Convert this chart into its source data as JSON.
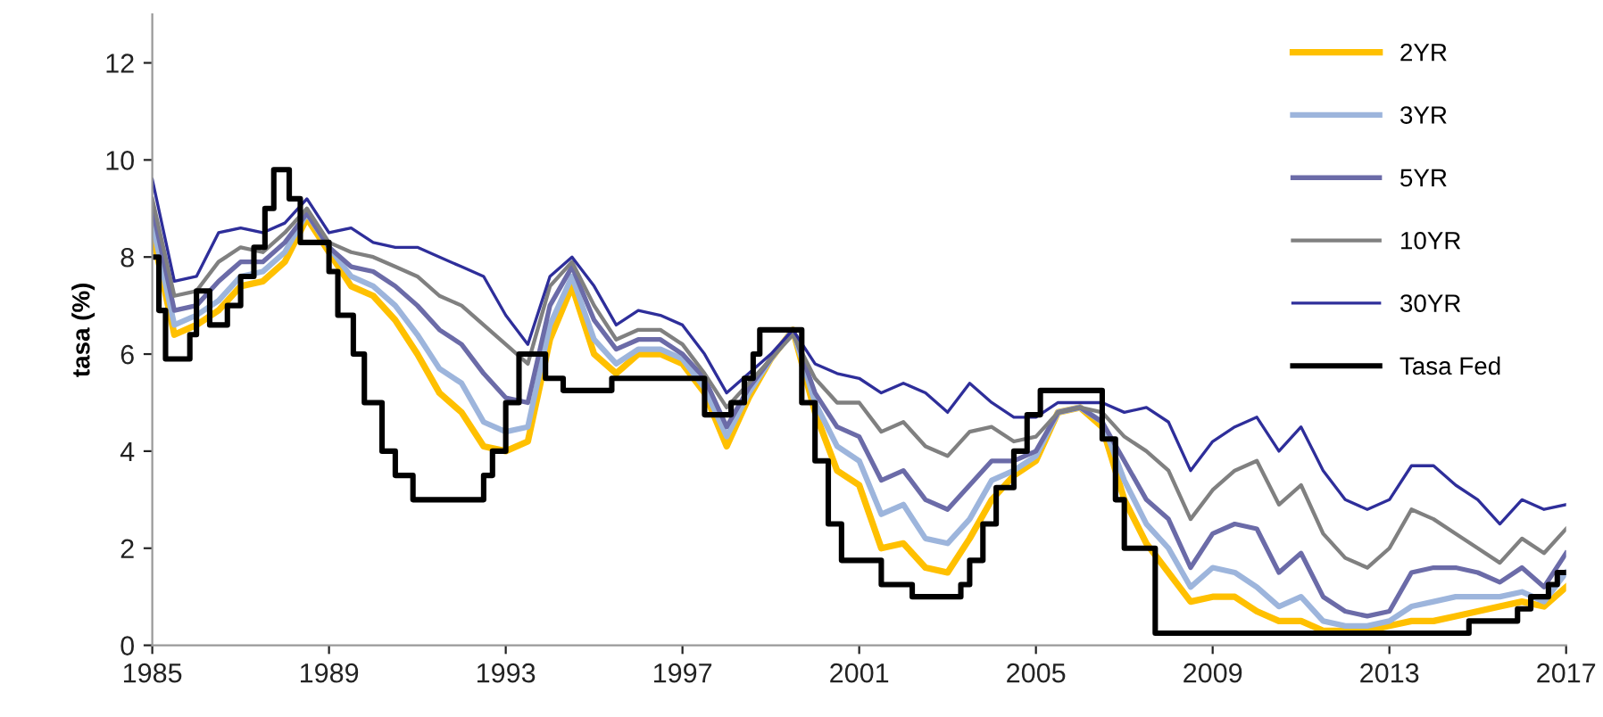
{
  "chart_data": {
    "type": "line",
    "ylabel": "tasa (%)",
    "x": [
      1985.0,
      1985.5,
      1986.0,
      1986.5,
      1987.0,
      1987.5,
      1988.0,
      1988.5,
      1989.0,
      1989.5,
      1990.0,
      1990.5,
      1991.0,
      1991.5,
      1992.0,
      1992.5,
      1993.0,
      1993.5,
      1994.0,
      1994.5,
      1995.0,
      1995.5,
      1996.0,
      1996.5,
      1997.0,
      1997.5,
      1998.0,
      1998.5,
      1999.0,
      1999.5,
      2000.0,
      2000.5,
      2001.0,
      2001.5,
      2002.0,
      2002.5,
      2003.0,
      2003.5,
      2004.0,
      2004.5,
      2005.0,
      2005.5,
      2006.0,
      2006.5,
      2007.0,
      2007.5,
      2008.0,
      2008.5,
      2009.0,
      2009.5,
      2010.0,
      2010.5,
      2011.0,
      2011.5,
      2012.0,
      2012.5,
      2013.0,
      2013.5,
      2014.0,
      2014.5,
      2015.0,
      2015.5,
      2016.0,
      2016.5,
      2017.0
    ],
    "series": [
      {
        "name": "2YR",
        "color": "#ffc000",
        "values": [
          8.5,
          6.4,
          6.6,
          6.9,
          7.4,
          7.5,
          7.9,
          8.8,
          8.1,
          7.4,
          7.2,
          6.7,
          6.0,
          5.2,
          4.8,
          4.1,
          4.0,
          4.2,
          6.3,
          7.4,
          6.0,
          5.6,
          6.0,
          6.0,
          5.8,
          5.2,
          4.1,
          5.1,
          5.9,
          6.5,
          4.8,
          3.6,
          3.3,
          2.0,
          2.1,
          1.6,
          1.5,
          2.2,
          3.0,
          3.5,
          3.8,
          4.8,
          4.9,
          4.5,
          3.0,
          2.1,
          1.5,
          0.9,
          1.0,
          1.0,
          0.7,
          0.5,
          0.5,
          0.3,
          0.3,
          0.3,
          0.4,
          0.5,
          0.5,
          0.6,
          0.7,
          0.8,
          0.9,
          0.8,
          1.2
        ]
      },
      {
        "name": "3YR",
        "color": "#9db5dc",
        "values": [
          8.7,
          6.6,
          6.8,
          7.1,
          7.6,
          7.7,
          8.1,
          8.9,
          8.2,
          7.6,
          7.4,
          7.0,
          6.4,
          5.7,
          5.4,
          4.6,
          4.4,
          4.5,
          6.6,
          7.6,
          6.3,
          5.8,
          6.1,
          6.1,
          5.9,
          5.3,
          4.3,
          5.2,
          5.9,
          6.5,
          5.0,
          4.1,
          3.8,
          2.7,
          2.9,
          2.2,
          2.1,
          2.6,
          3.4,
          3.6,
          3.9,
          4.8,
          4.9,
          4.6,
          3.4,
          2.5,
          2.0,
          1.2,
          1.6,
          1.5,
          1.2,
          0.8,
          1.0,
          0.5,
          0.4,
          0.4,
          0.5,
          0.8,
          0.9,
          1.0,
          1.0,
          1.0,
          1.1,
          0.9,
          1.5
        ]
      },
      {
        "name": "5YR",
        "color": "#6b6ba8",
        "values": [
          9.0,
          6.9,
          7.0,
          7.5,
          7.9,
          7.9,
          8.3,
          8.9,
          8.2,
          7.8,
          7.7,
          7.4,
          7.0,
          6.5,
          6.2,
          5.6,
          5.1,
          5.0,
          7.0,
          7.8,
          6.7,
          6.1,
          6.3,
          6.3,
          6.0,
          5.5,
          4.5,
          5.3,
          5.9,
          6.5,
          5.2,
          4.5,
          4.3,
          3.4,
          3.6,
          3.0,
          2.8,
          3.3,
          3.8,
          3.8,
          4.0,
          4.8,
          4.9,
          4.6,
          3.8,
          3.0,
          2.6,
          1.6,
          2.3,
          2.5,
          2.4,
          1.5,
          1.9,
          1.0,
          0.7,
          0.6,
          0.7,
          1.5,
          1.6,
          1.6,
          1.5,
          1.3,
          1.6,
          1.2,
          1.9
        ]
      },
      {
        "name": "10YR",
        "color": "#808080",
        "values": [
          9.2,
          7.2,
          7.3,
          7.9,
          8.2,
          8.1,
          8.5,
          9.0,
          8.3,
          8.1,
          8.0,
          7.8,
          7.6,
          7.2,
          7.0,
          6.6,
          6.2,
          5.8,
          7.4,
          7.9,
          7.0,
          6.3,
          6.5,
          6.5,
          6.2,
          5.6,
          4.9,
          5.4,
          5.9,
          6.4,
          5.5,
          5.0,
          5.0,
          4.4,
          4.6,
          4.1,
          3.9,
          4.4,
          4.5,
          4.2,
          4.3,
          4.8,
          4.9,
          4.8,
          4.3,
          4.0,
          3.6,
          2.6,
          3.2,
          3.6,
          3.8,
          2.9,
          3.3,
          2.3,
          1.8,
          1.6,
          2.0,
          2.8,
          2.6,
          2.3,
          2.0,
          1.7,
          2.2,
          1.9,
          2.4
        ]
      },
      {
        "name": "30YR",
        "color": "#2e2e9a",
        "values": [
          9.6,
          7.5,
          7.6,
          8.5,
          8.6,
          8.5,
          8.7,
          9.2,
          8.5,
          8.6,
          8.3,
          8.2,
          8.2,
          8.0,
          7.8,
          7.6,
          6.8,
          6.2,
          7.6,
          8.0,
          7.4,
          6.6,
          6.9,
          6.8,
          6.6,
          6.0,
          5.2,
          5.6,
          6.0,
          6.5,
          5.8,
          5.6,
          5.5,
          5.2,
          5.4,
          5.2,
          4.8,
          5.4,
          5.0,
          4.7,
          4.7,
          5.0,
          5.0,
          5.0,
          4.8,
          4.9,
          4.6,
          3.6,
          4.2,
          4.5,
          4.7,
          4.0,
          4.5,
          3.6,
          3.0,
          2.8,
          3.0,
          3.7,
          3.7,
          3.3,
          3.0,
          2.5,
          3.0,
          2.8,
          2.9
        ]
      },
      {
        "name": "Tasa Fed",
        "color": "#000000",
        "type": "step",
        "x": [
          1985.0,
          1985.15,
          1985.3,
          1985.85,
          1986.0,
          1986.3,
          1986.7,
          1987.0,
          1987.3,
          1987.55,
          1987.75,
          1988.1,
          1988.35,
          1989.0,
          1989.2,
          1989.55,
          1989.8,
          1990.2,
          1990.5,
          1990.9,
          1992.5,
          1992.7,
          1993.0,
          1993.3,
          1993.9,
          1994.3,
          1995.4,
          1997.5,
          1998.1,
          1998.4,
          1998.6,
          1998.75,
          1999.7,
          2000.0,
          2000.3,
          2000.6,
          2001.5,
          2002.2,
          2003.3,
          2003.5,
          2003.8,
          2004.1,
          2004.5,
          2004.8,
          2005.1,
          2006.5,
          2006.8,
          2007.0,
          2007.7,
          2014.8,
          2015.9,
          2016.2,
          2016.6,
          2016.8,
          2017.0
        ],
        "values": [
          8.0,
          6.9,
          5.9,
          6.4,
          7.3,
          6.6,
          7.0,
          7.6,
          8.2,
          9.0,
          9.8,
          9.2,
          8.3,
          7.7,
          6.8,
          6.0,
          5.0,
          4.0,
          3.5,
          3.0,
          3.5,
          4.0,
          5.0,
          6.0,
          5.5,
          5.25,
          5.5,
          4.75,
          5.0,
          5.5,
          6.0,
          6.5,
          5.0,
          3.8,
          2.5,
          1.75,
          1.25,
          1.0,
          1.25,
          1.75,
          2.5,
          3.25,
          4.0,
          4.75,
          5.25,
          4.25,
          3.0,
          2.0,
          0.25,
          0.5,
          0.75,
          1.0,
          1.25,
          1.5,
          1.5
        ]
      }
    ],
    "xlim": [
      1985,
      2017
    ],
    "xticks": [
      1985,
      1989,
      1993,
      1997,
      2001,
      2005,
      2009,
      2013,
      2017
    ],
    "ylim": [
      0,
      13
    ],
    "yticks": [
      0,
      2,
      4,
      6,
      8,
      10,
      12
    ],
    "grid": false,
    "legend": "top right",
    "marker": "none",
    "line_style": "solid"
  }
}
